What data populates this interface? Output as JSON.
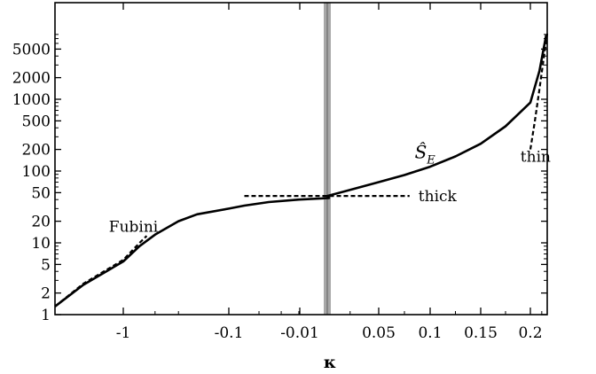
{
  "chart_data": {
    "type": "line",
    "title": "",
    "xlabel": "κ",
    "ylabel": "",
    "y_scale": "log",
    "ylim": [
      1,
      8500
    ],
    "grid": false,
    "legend": "none",
    "x_tick_labels": [
      "-1",
      "-0.1",
      "-0.01",
      "0.05",
      "0.1",
      "0.15",
      "0.2"
    ],
    "y_tick_labels": [
      "1",
      "2",
      "5",
      "10",
      "20",
      "50",
      "100",
      "200",
      "500",
      "1000",
      "2000",
      "5000"
    ],
    "y_ticks": [
      1,
      2,
      5,
      10,
      20,
      50,
      100,
      200,
      500,
      1000,
      2000,
      5000
    ],
    "series": [
      {
        "style": "solid",
        "x": [
          "-2",
          "-1.5",
          "-1",
          "-0.7",
          "-0.5",
          "-0.3",
          "-0.2",
          "-0.1",
          "-0.07",
          "-0.04",
          "-0.02",
          "-0.01",
          "0.005",
          "0.02",
          "0.05",
          "0.075",
          "0.1",
          "0.125",
          "0.15",
          "0.175",
          "0.2",
          "0.22",
          "0.235"
        ],
        "y": [
          1.3,
          2.6,
          5.5,
          9,
          13,
          20,
          25,
          30,
          33,
          37,
          40,
          42,
          45,
          52,
          70,
          88,
          115,
          160,
          240,
          420,
          900,
          2500,
          8000
        ]
      },
      {
        "style": "dashed",
        "x": [
          "-2",
          "-1.5",
          "-1",
          "-0.7",
          "-0.6"
        ],
        "y": [
          1.3,
          2.7,
          5.8,
          10,
          12.5
        ]
      },
      {
        "style": "dashed",
        "x": [
          "-0.07",
          "0.08"
        ],
        "y": [
          45,
          45
        ]
      },
      {
        "style": "dashed",
        "x": [
          "0.2",
          "0.21",
          "0.22",
          "0.23",
          "0.237"
        ],
        "y": [
          200,
          500,
          1400,
          4000,
          8200
        ]
      }
    ],
    "shaded_band_at": "0",
    "annotations": [
      {
        "text": "Fubini",
        "x": "-0.8",
        "y": 17
      },
      {
        "text": "thick",
        "x": "0.08",
        "y": 45
      },
      {
        "text": "thin",
        "x": "0.19",
        "y": 160
      }
    ],
    "main_label": {
      "text": "Ŝ",
      "subscript": "E",
      "x": "0.085",
      "y": 150
    }
  }
}
